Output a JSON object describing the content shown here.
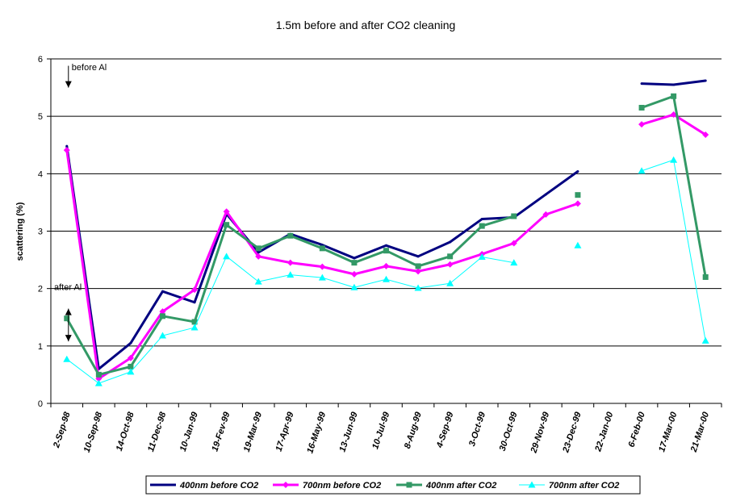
{
  "chart_data": {
    "type": "line",
    "title": "1.5m before and after CO2 cleaning",
    "ylabel": "scattering (%)",
    "xlabel": "",
    "ylim": [
      0,
      6
    ],
    "yticks": [
      "0",
      "1",
      "2",
      "3",
      "4",
      "5",
      "6"
    ],
    "grid": "horizontal",
    "legend_position": "bottom",
    "categories": [
      "2-Sep-98",
      "10-Sep-98",
      "14-Oct-98",
      "11-Dec-98",
      "10-Jan-99",
      "19-Fev-99",
      "19-Mar-99",
      "17-Apr-99",
      "16-May-99",
      "13-Jun-99",
      "10-Jul-99",
      "8-Aug-99",
      "4-Sep-99",
      "3-Oct-99",
      "30-Oct-99",
      "29-Nov-99",
      "23-Dec-99",
      "22-Jan-00",
      "6-Feb-00",
      "17-Mar-00",
      "21-Mar-00"
    ],
    "series": [
      {
        "name": "400nm before CO2",
        "color": "#000080",
        "marker": "none",
        "width": 3,
        "values": [
          4.48,
          0.6,
          1.05,
          1.95,
          1.76,
          3.3,
          2.63,
          2.95,
          2.76,
          2.53,
          2.75,
          2.56,
          2.81,
          3.21,
          3.24,
          3.64,
          4.04,
          null,
          5.57,
          5.55,
          5.62
        ]
      },
      {
        "name": "700nm before CO2",
        "color": "#ff00ff",
        "marker": "diamond",
        "width": 3,
        "values": [
          4.41,
          0.43,
          0.79,
          1.6,
          1.98,
          3.34,
          2.56,
          2.45,
          2.38,
          2.25,
          2.39,
          2.3,
          2.42,
          2.6,
          2.79,
          3.29,
          3.48,
          null,
          4.86,
          5.03,
          4.68
        ]
      },
      {
        "name": "400nm after CO2",
        "color": "#339966",
        "marker": "square",
        "width": 3,
        "values": [
          1.48,
          0.5,
          0.64,
          1.52,
          1.42,
          3.11,
          2.7,
          2.92,
          2.7,
          2.45,
          2.66,
          2.39,
          2.56,
          3.09,
          3.26,
          null,
          3.63,
          null,
          5.15,
          5.35,
          2.2
        ]
      },
      {
        "name": "700nm after CO2",
        "color": "#00ffff",
        "marker": "triangle",
        "width": 1,
        "values": [
          0.77,
          0.35,
          0.55,
          1.18,
          1.32,
          2.56,
          2.12,
          2.24,
          2.19,
          2.02,
          2.16,
          2.01,
          2.09,
          2.55,
          2.45,
          null,
          2.75,
          null,
          4.05,
          4.24,
          1.09
        ]
      }
    ],
    "annotations": [
      {
        "text": "before Al",
        "x_index": 0,
        "y": 6.0
      },
      {
        "text": "after Al",
        "x_index": 0,
        "y": 2.0
      }
    ]
  }
}
